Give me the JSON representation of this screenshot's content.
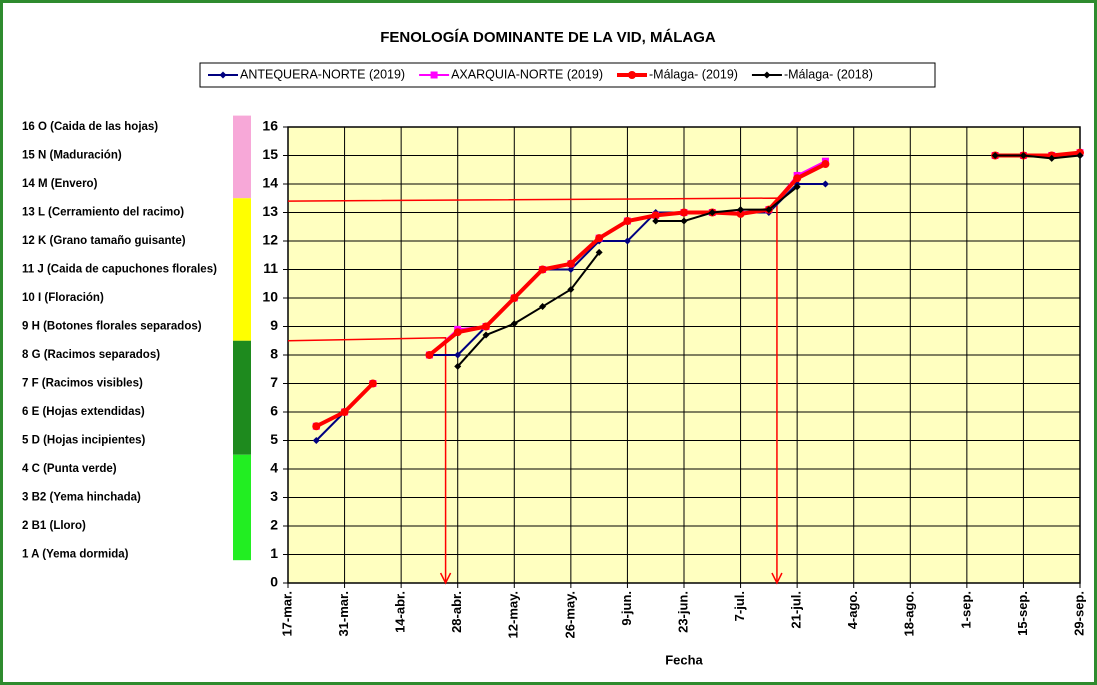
{
  "chart_data": {
    "type": "line",
    "title": "FENOLOGÍA DOMINANTE DE LA VID, MÁLAGA",
    "x_label": "Fecha",
    "x": [
      83,
      90,
      97,
      104,
      111,
      118,
      125,
      132,
      139,
      146,
      153,
      160,
      167,
      174,
      181,
      188,
      195,
      202,
      209,
      216,
      251,
      258,
      265,
      272
    ],
    "xlim": [
      76,
      272
    ],
    "xticks": [
      {
        "value": 76,
        "label": "17-mar."
      },
      {
        "value": 90,
        "label": "31-mar."
      },
      {
        "value": 104,
        "label": "14-abr."
      },
      {
        "value": 118,
        "label": "28-abr."
      },
      {
        "value": 132,
        "label": "12-may."
      },
      {
        "value": 146,
        "label": "26-may."
      },
      {
        "value": 160,
        "label": "9-jun."
      },
      {
        "value": 174,
        "label": "23-jun."
      },
      {
        "value": 188,
        "label": "7-jul."
      },
      {
        "value": 202,
        "label": "21-jul."
      },
      {
        "value": 216,
        "label": "4-ago."
      },
      {
        "value": 230,
        "label": "18-ago."
      },
      {
        "value": 244,
        "label": "1-sep."
      },
      {
        "value": 258,
        "label": "15-sep."
      },
      {
        "value": 272,
        "label": "29-sep."
      }
    ],
    "ylim": [
      0,
      16
    ],
    "yticks": [
      0,
      1,
      2,
      3,
      4,
      5,
      6,
      7,
      8,
      9,
      10,
      11,
      12,
      13,
      14,
      15,
      16
    ],
    "grid": true,
    "plot_background": "#ffffc0",
    "series": [
      {
        "name": "ANTEQUERA-NORTE (2019)",
        "color": "#000080",
        "marker": "diamond",
        "width": 2,
        "values": [
          5,
          6,
          7,
          null,
          8,
          8,
          9,
          10,
          11,
          11,
          12,
          12,
          13,
          13,
          13,
          13,
          13,
          14,
          14,
          null,
          15,
          15,
          15,
          15
        ]
      },
      {
        "name": "AXARQUIA-NORTE (2019)",
        "color": "#ff00ff",
        "marker": "square",
        "width": 2,
        "values": [
          5.5,
          6,
          7,
          null,
          8,
          8.9,
          9,
          10,
          11,
          11.2,
          12.1,
          12.7,
          12.9,
          13,
          13,
          13,
          13.1,
          14.3,
          14.8,
          null,
          15,
          15,
          15,
          15.1
        ]
      },
      {
        "name": "-Málaga- (2019)",
        "color": "#ff0000",
        "marker": "circle",
        "width": 4,
        "values": [
          5.5,
          6,
          7,
          null,
          8,
          8.8,
          9,
          10,
          11,
          11.2,
          12.1,
          12.7,
          12.9,
          13,
          13,
          12.95,
          13.1,
          14.2,
          14.7,
          null,
          15,
          15,
          15,
          15.1
        ]
      },
      {
        "name": "-Málaga- (2018)",
        "color": "#000000",
        "marker": "diamond",
        "width": 2,
        "values": [
          null,
          null,
          null,
          null,
          null,
          7.6,
          8.7,
          9.1,
          9.7,
          10.3,
          11.6,
          null,
          12.7,
          12.7,
          13,
          13.1,
          13.1,
          13.9,
          null,
          null,
          15,
          15,
          14.9,
          15
        ]
      }
    ],
    "stage_labels": [
      {
        "value": 16,
        "label": "16 O (Caida de las hojas)"
      },
      {
        "value": 15,
        "label": "15 N (Maduración)"
      },
      {
        "value": 14,
        "label": "14 M (Envero)"
      },
      {
        "value": 13,
        "label": "13 L (Cerramiento del racimo)"
      },
      {
        "value": 12,
        "label": "12 K (Grano tamaño guisante)"
      },
      {
        "value": 11,
        "label": "11 J (Caida de capuchones florales)"
      },
      {
        "value": 10,
        "label": "10 I (Floración)"
      },
      {
        "value": 9,
        "label": "9 H (Botones florales separados)"
      },
      {
        "value": 8,
        "label": "8 G (Racimos separados)"
      },
      {
        "value": 7,
        "label": "7 F (Racimos visibles)"
      },
      {
        "value": 6,
        "label": "6 E (Hojas extendidas)"
      },
      {
        "value": 5,
        "label": "5 D (Hojas incipientes)"
      },
      {
        "value": 4,
        "label": "4 C (Punta verde)"
      },
      {
        "value": 3,
        "label": "3 B2 (Yema hinchada)"
      },
      {
        "value": 2,
        "label": "2 B1 (Lloro)"
      },
      {
        "value": 1,
        "label": "1 A (Yema dormida)"
      }
    ],
    "stage_bands": [
      {
        "from": 13.5,
        "to": 16.4,
        "color": "#f7a8d8"
      },
      {
        "from": 8.5,
        "to": 13.5,
        "color": "#ffff00"
      },
      {
        "from": 4.5,
        "to": 8.5,
        "color": "#1e8a1e"
      },
      {
        "from": 0.8,
        "to": 4.5,
        "color": "#22ee22"
      }
    ],
    "annotations": [
      {
        "x": 115,
        "y": 8.5,
        "color": "#ff0000"
      },
      {
        "x": 197,
        "y": 13.4,
        "color": "#ff0000"
      }
    ]
  }
}
